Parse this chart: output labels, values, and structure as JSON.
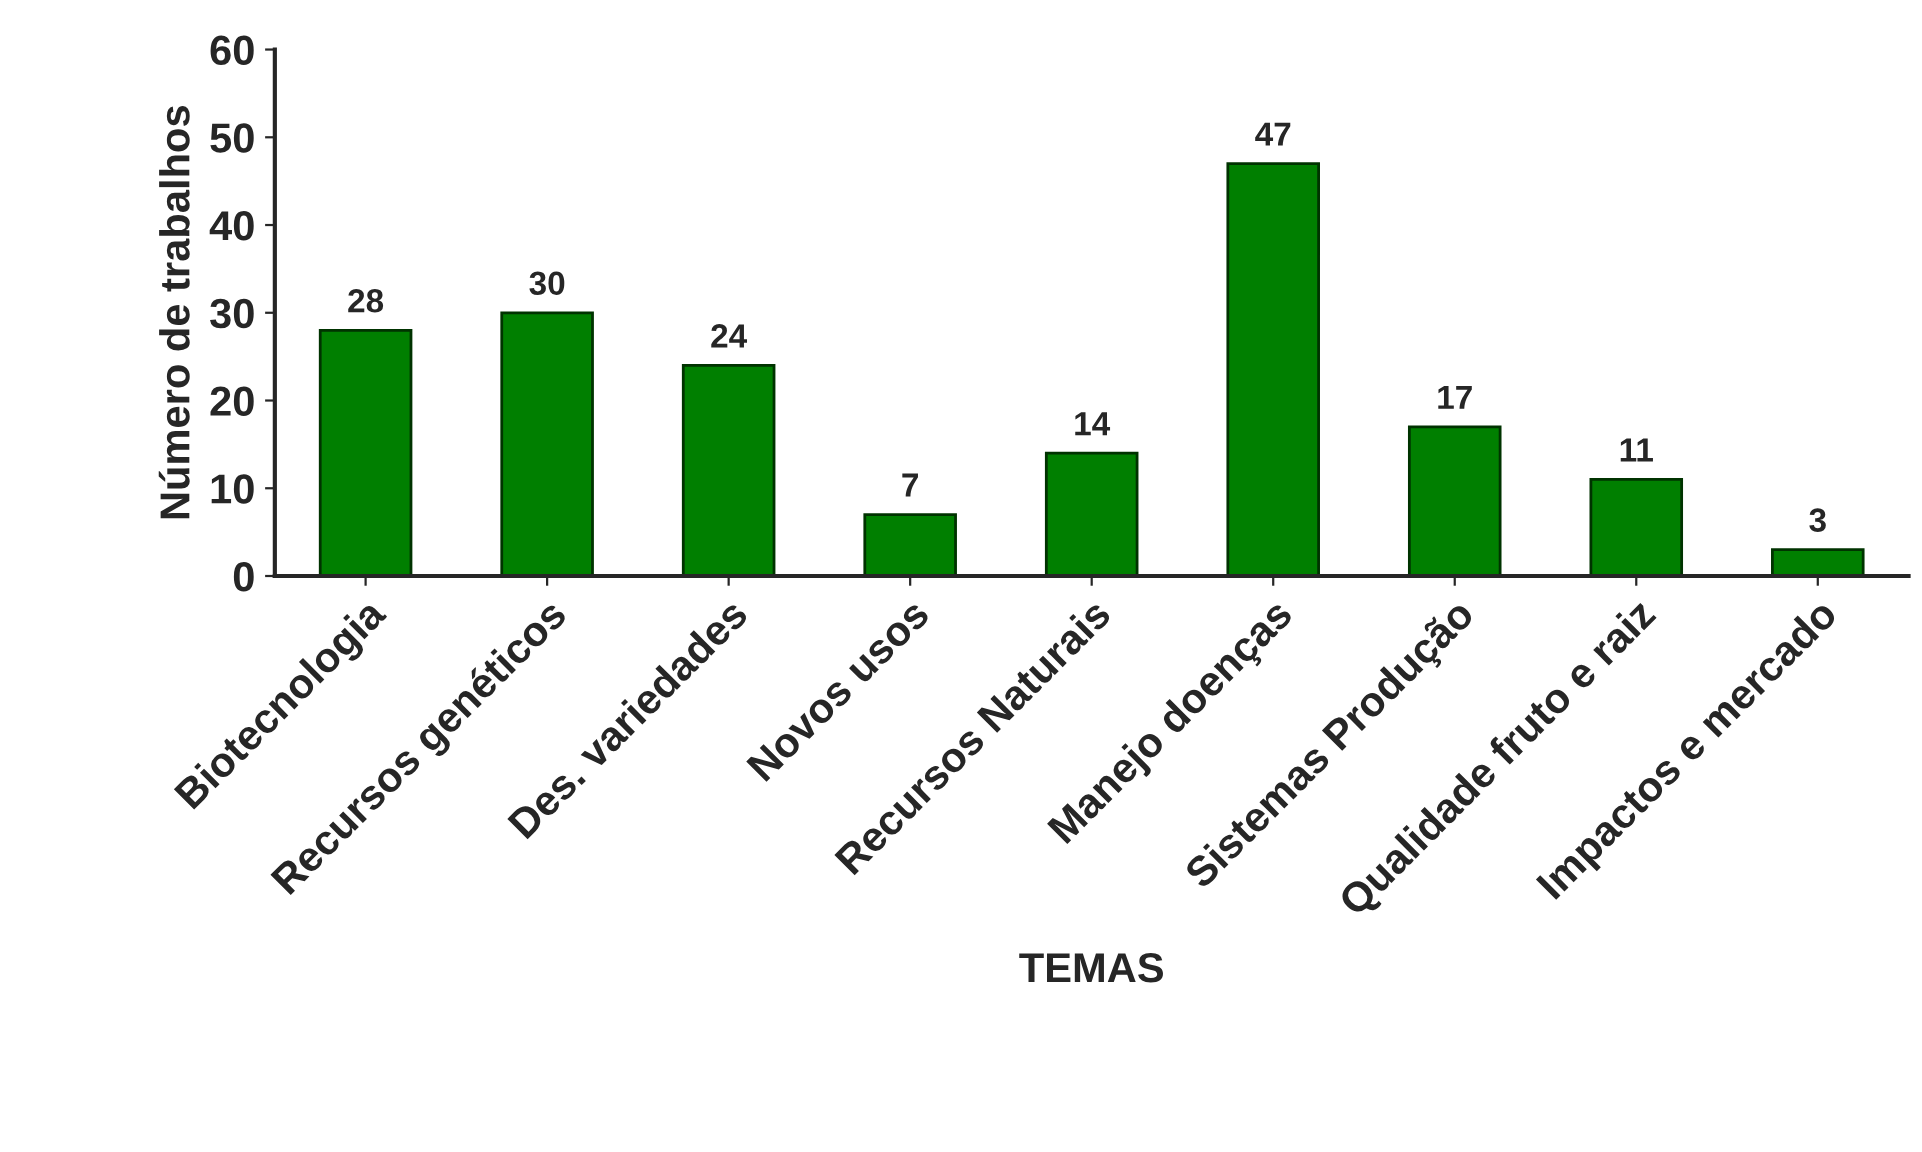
{
  "chart_data": {
    "type": "bar",
    "xlabel": "TEMAS",
    "ylabel": "Número de trabalhos",
    "categories": [
      "Biotecnologia",
      "Recursos genéticos",
      "Des. variedades",
      "Novos usos",
      "Recursos Naturais",
      "Manejo doenças",
      "Sistemas Produção",
      "Qualidade fruto e raiz",
      "Impactos e mercado"
    ],
    "values": [
      28,
      30,
      24,
      7,
      14,
      47,
      17,
      11,
      3
    ],
    "color": "#007f00",
    "ylim": [
      0,
      60
    ],
    "yticks": [
      0,
      10,
      20,
      30,
      40,
      50,
      60
    ],
    "data_labels": true,
    "grid": false,
    "legend": false
  }
}
